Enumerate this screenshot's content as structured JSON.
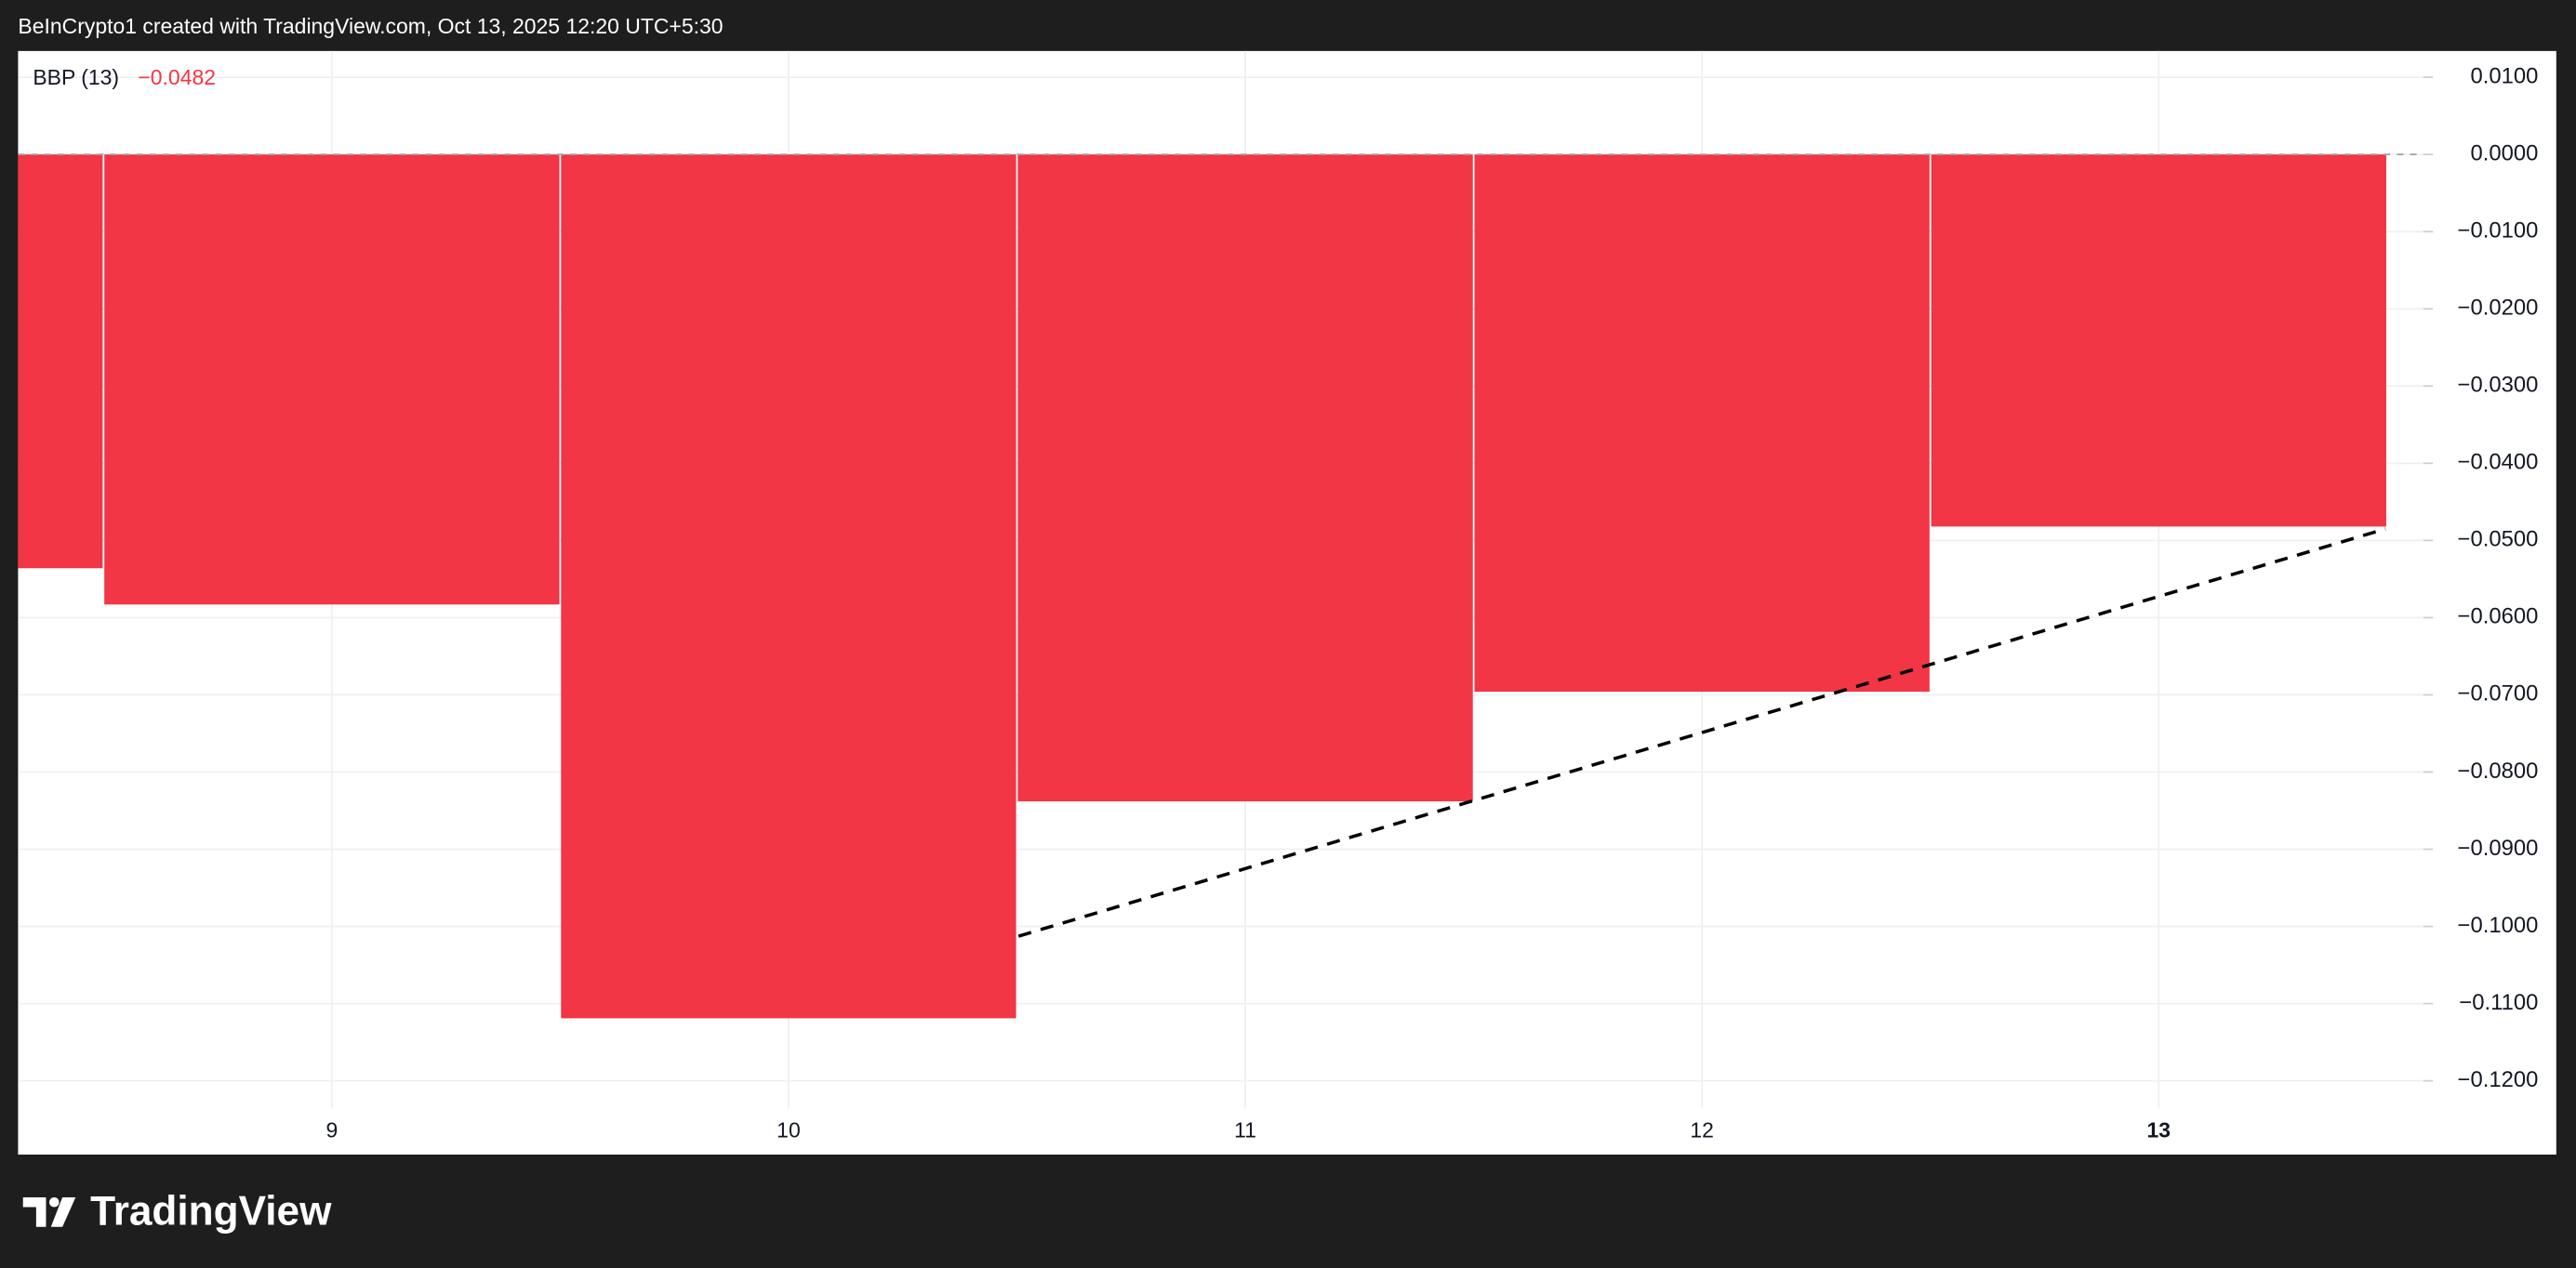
{
  "header": "BeInCrypto1 created with TradingView.com, Oct 13, 2025 12:20 UTC+5:30",
  "footer": "TradingView",
  "chart_data": {
    "type": "bar",
    "legend": {
      "name": "BBP (13)",
      "value": -0.0482,
      "value_label": "−0.0482"
    },
    "categories": [
      null,
      "9",
      "10",
      "11",
      "12",
      "13"
    ],
    "values": [
      -0.0536,
      -0.0583,
      -0.1119,
      -0.0838,
      -0.0696,
      -0.0482
    ],
    "color": "#f23645",
    "ylim": [
      -0.1236,
      0.0134
    ],
    "yticks": [
      {
        "value": 0.01,
        "label": "0.0100"
      },
      {
        "value": 0,
        "label": "0.0000"
      },
      {
        "value": -0.01,
        "label": "−0.0100"
      },
      {
        "value": -0.02,
        "label": "−0.0200"
      },
      {
        "value": -0.03,
        "label": "−0.0300"
      },
      {
        "value": -0.04,
        "label": "−0.0400"
      },
      {
        "value": -0.05,
        "label": "−0.0500"
      },
      {
        "value": -0.06,
        "label": "−0.0600"
      },
      {
        "value": -0.07,
        "label": "−0.0700"
      },
      {
        "value": -0.08,
        "label": "−0.0800"
      },
      {
        "value": -0.09,
        "label": "−0.0900"
      },
      {
        "value": -0.1,
        "label": "−0.1000"
      },
      {
        "value": -0.11,
        "label": "−0.1100"
      },
      {
        "value": -0.12,
        "label": "−0.1200"
      }
    ],
    "grid": true
  }
}
